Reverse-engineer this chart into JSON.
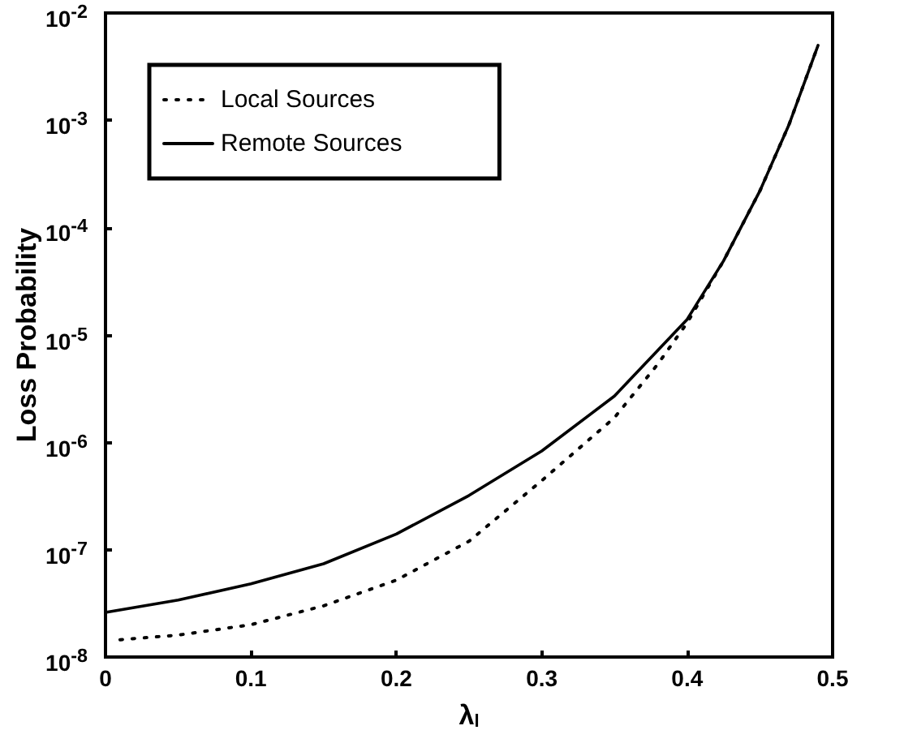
{
  "chart_data": {
    "type": "line",
    "xlabel": "λ$_{l}$",
    "ylabel": "Loss Probability",
    "log": "y",
    "grid": false,
    "legend": "top left",
    "marker": "none",
    "xlim": [
      0,
      0.5
    ],
    "xticks": [
      0,
      0.1,
      0.2,
      0.3,
      0.4,
      0.5
    ],
    "ylim": [
      1e-08,
      0.01
    ],
    "yticks": [
      {
        "value": 1e-08,
        "label": "10$^{-8}$"
      },
      {
        "value": 1e-07,
        "label": "10$^{-7}$"
      },
      {
        "value": 1e-06,
        "label": "10$^{-6}$"
      },
      {
        "value": 1e-05,
        "label": "10$^{-5}$"
      },
      {
        "value": 0.0001,
        "label": "10$^{-4}$"
      },
      {
        "value": 0.001,
        "label": "10$^{-3}$"
      },
      {
        "value": 0.01,
        "label": "10$^{-2}$"
      }
    ],
    "series": [
      {
        "name": "Local Sources",
        "color": "#000000",
        "line_style": "dotted",
        "x": [
          0.01,
          0.05,
          0.1,
          0.15,
          0.2,
          0.25,
          0.3,
          0.35,
          0.38,
          0.4,
          0.425,
          0.45,
          0.47,
          0.49
        ],
        "values": [
          1.45e-08,
          1.6e-08,
          2e-08,
          3e-08,
          5.2e-08,
          1.2e-07,
          4.4e-07,
          1.7e-06,
          5.4e-06,
          1.3e-05,
          4.9e-05,
          0.00022,
          0.00091,
          0.005
        ]
      },
      {
        "name": "Remote Sources",
        "color": "#000000",
        "line_style": "solid",
        "x": [
          0,
          0.05,
          0.1,
          0.15,
          0.2,
          0.25,
          0.3,
          0.35,
          0.4,
          0.425,
          0.45,
          0.47,
          0.49
        ],
        "values": [
          2.6e-08,
          3.4e-08,
          4.8e-08,
          7.4e-08,
          1.4e-07,
          3.2e-07,
          8.3e-07,
          2.7e-06,
          1.4e-05,
          4.9e-05,
          0.00022,
          0.00091,
          0.005
        ]
      }
    ]
  }
}
